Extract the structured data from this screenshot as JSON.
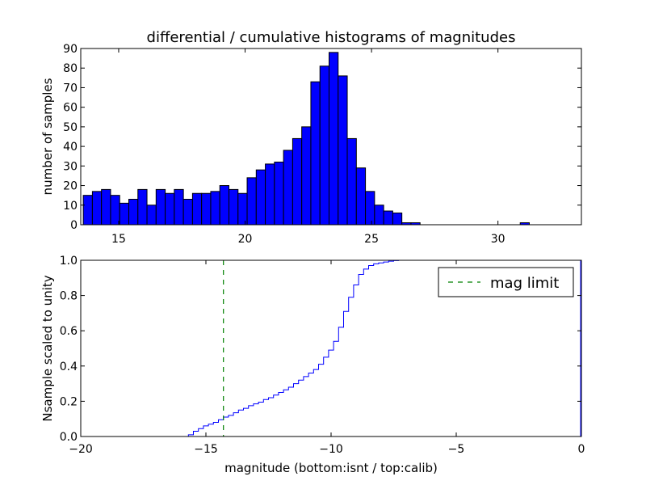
{
  "figure": {
    "title": "differential / cumulative histograms of magnitudes",
    "xlabel": "magnitude (bottom:isnt / top:calib)"
  },
  "chart_data": [
    {
      "type": "bar",
      "title": "differential / cumulative histograms of magnitudes",
      "ylabel": "number of samples",
      "xlabel": "",
      "xlim": [
        13.5,
        33.3
      ],
      "ylim": [
        0,
        90
      ],
      "xticks": [
        15,
        20,
        25,
        30
      ],
      "xtick_labels": [
        "15",
        "20",
        "25",
        "30"
      ],
      "yticks": [
        0,
        10,
        20,
        30,
        40,
        50,
        60,
        70,
        80,
        90
      ],
      "ytick_labels": [
        "0",
        "10",
        "20",
        "30",
        "40",
        "50",
        "60",
        "70",
        "80",
        "90"
      ],
      "bar_color": "#0000ff",
      "bin_width": 0.36,
      "bin_start": 13.6,
      "counts": [
        15,
        17,
        18,
        15,
        11,
        13,
        18,
        10,
        18,
        16,
        18,
        13,
        16,
        16,
        17,
        20,
        18,
        16,
        24,
        28,
        31,
        32,
        38,
        44,
        50,
        73,
        81,
        88,
        76,
        44,
        29,
        17,
        10,
        7,
        6,
        1,
        1,
        0,
        0,
        0,
        0,
        0,
        0,
        0,
        0,
        0,
        0,
        0,
        1,
        0,
        0,
        0,
        0,
        0,
        0
      ],
      "grid": false
    },
    {
      "type": "line",
      "ylabel": "Nsample scaled to unity",
      "xlabel": "magnitude (bottom:isnt / top:calib)",
      "xlim": [
        -20,
        0
      ],
      "ylim": [
        0,
        1
      ],
      "xticks": [
        -20,
        -15,
        -10,
        -5,
        0
      ],
      "xtick_labels": [
        "−20",
        "−15",
        "−10",
        "−5",
        "0"
      ],
      "yticks": [
        0,
        0.2,
        0.4,
        0.6,
        0.8,
        1.0
      ],
      "ytick_labels": [
        "0.0",
        "0.2",
        "0.4",
        "0.6",
        "0.8",
        "1.0"
      ],
      "step_color": "#0000ff",
      "step_x": [
        -20,
        -15.7,
        -15.5,
        -15.3,
        -15.1,
        -14.9,
        -14.7,
        -14.5,
        -14.3,
        -14.1,
        -13.9,
        -13.7,
        -13.5,
        -13.3,
        -13.1,
        -12.9,
        -12.7,
        -12.5,
        -12.3,
        -12.1,
        -11.9,
        -11.7,
        -11.5,
        -11.3,
        -11.1,
        -10.9,
        -10.7,
        -10.5,
        -10.3,
        -10.1,
        -9.9,
        -9.7,
        -9.5,
        -9.3,
        -9.1,
        -8.9,
        -8.7,
        -8.5,
        -8.3,
        -8.1,
        -7.9,
        -7.7,
        -7.5,
        -7.3,
        -7.1,
        -0.05
      ],
      "step_y": [
        0,
        0.01,
        0.03,
        0.045,
        0.06,
        0.07,
        0.08,
        0.095,
        0.11,
        0.12,
        0.135,
        0.15,
        0.16,
        0.175,
        0.185,
        0.195,
        0.21,
        0.22,
        0.235,
        0.25,
        0.265,
        0.28,
        0.3,
        0.32,
        0.34,
        0.36,
        0.38,
        0.41,
        0.45,
        0.49,
        0.54,
        0.62,
        0.71,
        0.79,
        0.86,
        0.92,
        0.95,
        0.97,
        0.98,
        0.985,
        0.99,
        0.995,
        0.998,
        1.0,
        1.0,
        1.0
      ],
      "limit": {
        "name": "mag limit",
        "x": -14.3,
        "color": "#008000",
        "style": "dashed"
      },
      "legend": {
        "entries": [
          "mag limit"
        ],
        "placement": "top-right"
      },
      "grid": false
    }
  ]
}
